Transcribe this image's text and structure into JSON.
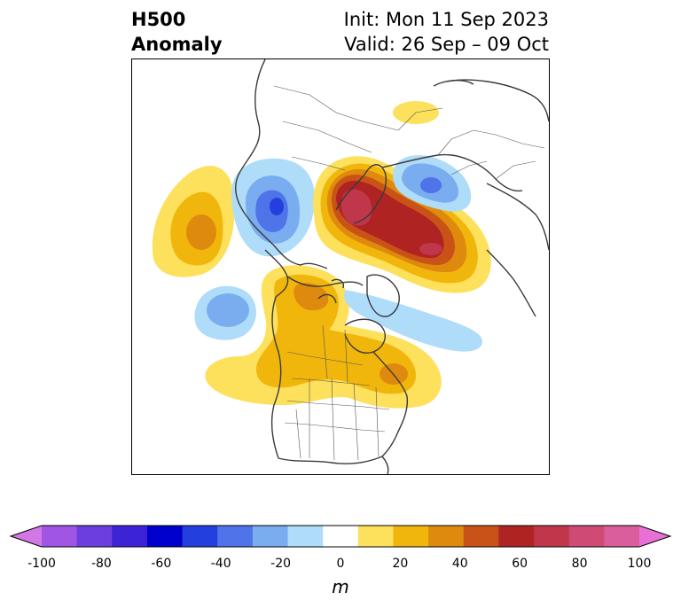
{
  "header": {
    "title_line1": "H500",
    "title_line2": "Anomaly",
    "init": "Init: Mon 11 Sep 2023",
    "valid": "Valid: 26 Sep – 09 Oct"
  },
  "colorbar": {
    "unit": "m",
    "tick_labels": [
      "-100",
      "-80",
      "-60",
      "-40",
      "-20",
      "0",
      "20",
      "40",
      "60",
      "80",
      "100"
    ],
    "colors": [
      "#d477e6",
      "#a055e3",
      "#6c3ee0",
      "#3d23d6",
      "#0000cc",
      "#2340de",
      "#4f73e8",
      "#79adf0",
      "#afdcf9",
      "#ffffff",
      "#fde05c",
      "#f1b60c",
      "#de8a0e",
      "#c95316",
      "#b02323",
      "#c0364b",
      "#cf4a74",
      "#da5d9c",
      "#e86fd3"
    ]
  }
}
